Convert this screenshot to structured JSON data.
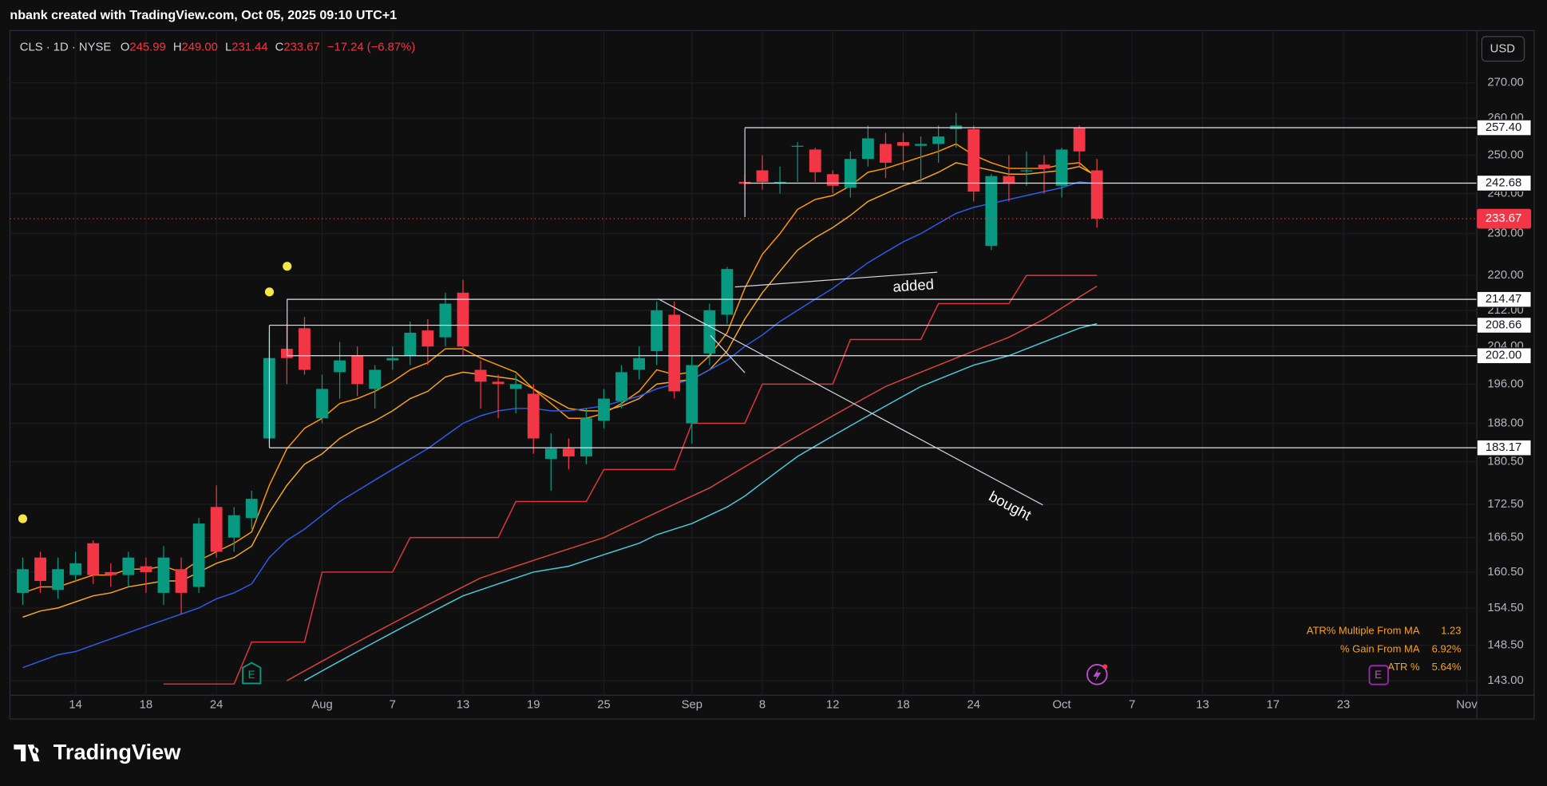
{
  "header": "nbank created with TradingView.com, Oct 05, 2025 09:10 UTC+1",
  "brand": "TradingView",
  "chart_data": {
    "type": "candlestick",
    "log": true,
    "grid": true,
    "legend": {
      "symbol": "CLS · 1D · NYSE",
      "o_label": "O",
      "o": "245.99",
      "h_label": "H",
      "h": "249.00",
      "l_label": "L",
      "l": "231.44",
      "c_label": "C",
      "c": "233.67",
      "change": "−17.24 (−6.87%)"
    },
    "currency": "USD",
    "up_color": "#089981",
    "down_color": "#f23645",
    "x": [
      "2025-07-09",
      "2025-07-10",
      "2025-07-11",
      "2025-07-14",
      "2025-07-15",
      "2025-07-16",
      "2025-07-17",
      "2025-07-18",
      "2025-07-21",
      "2025-07-22",
      "2025-07-23",
      "2025-07-24",
      "2025-07-25",
      "2025-07-28",
      "2025-07-29",
      "2025-07-30",
      "2025-07-31",
      "2025-08-01",
      "2025-08-04",
      "2025-08-05",
      "2025-08-06",
      "2025-08-07",
      "2025-08-08",
      "2025-08-11",
      "2025-08-12",
      "2025-08-13",
      "2025-08-14",
      "2025-08-15",
      "2025-08-18",
      "2025-08-19",
      "2025-08-20",
      "2025-08-21",
      "2025-08-22",
      "2025-08-25",
      "2025-08-26",
      "2025-08-27",
      "2025-08-28",
      "2025-08-29",
      "2025-09-02",
      "2025-09-03",
      "2025-09-04",
      "2025-09-05",
      "2025-09-08",
      "2025-09-09",
      "2025-09-10",
      "2025-09-11",
      "2025-09-12",
      "2025-09-15",
      "2025-09-16",
      "2025-09-17",
      "2025-09-18",
      "2025-09-19",
      "2025-09-22",
      "2025-09-23",
      "2025-09-24",
      "2025-09-25",
      "2025-09-26",
      "2025-09-29",
      "2025-09-30",
      "2025-10-01",
      "2025-10-02",
      "2025-10-03"
    ],
    "open": [
      157,
      163,
      157.5,
      160,
      165.5,
      160.5,
      160,
      161.5,
      157,
      161,
      158,
      172,
      166.5,
      170,
      185,
      203.5,
      208,
      189,
      198.5,
      202,
      195,
      201,
      202,
      207.5,
      206,
      216,
      199,
      196.5,
      195,
      194,
      181,
      183,
      181.5,
      188.5,
      192.5,
      199,
      203,
      211,
      188,
      202.5,
      211,
      243,
      246,
      243,
      252.5,
      251.5,
      245,
      241.5,
      249,
      253,
      253.5,
      252.5,
      253,
      257,
      257,
      227,
      244.5,
      246,
      247.5,
      242,
      257.5,
      245.99
    ],
    "high": [
      163,
      164,
      163,
      164,
      166,
      162,
      164,
      163,
      165,
      163,
      170,
      176,
      172,
      175,
      207,
      209,
      210.5,
      198,
      205,
      204,
      200,
      204,
      209.5,
      210,
      216,
      219,
      201,
      198,
      198,
      196,
      186,
      185,
      191,
      195,
      200,
      204,
      214,
      214,
      202,
      213.5,
      222,
      245,
      250,
      247,
      253.5,
      252,
      246,
      251,
      258,
      256,
      256,
      255,
      258,
      261.5,
      258,
      245,
      250,
      251,
      250,
      252,
      258,
      249
    ],
    "low": [
      155,
      157,
      156,
      159,
      158.5,
      158,
      158,
      157,
      155,
      153.5,
      157,
      163,
      164,
      168,
      184,
      196,
      198,
      188,
      193,
      193.5,
      191,
      199,
      200,
      200,
      204,
      202,
      191,
      189,
      190,
      182,
      175,
      179,
      180,
      187,
      191,
      197,
      200,
      193,
      184,
      200,
      209,
      241,
      241,
      240,
      243,
      243,
      240,
      239,
      247,
      244,
      246,
      243,
      248,
      252,
      238,
      226,
      238,
      242,
      240,
      239,
      247,
      231.44
    ],
    "close": [
      161,
      159,
      161,
      162,
      160,
      160,
      163,
      160.5,
      163,
      157,
      169,
      164,
      170.5,
      173.5,
      201.5,
      201.5,
      199,
      195,
      201,
      196,
      199,
      201.5,
      207,
      204,
      213.5,
      204,
      196.5,
      196,
      196,
      185,
      183,
      181.5,
      189,
      193,
      198.5,
      201.5,
      212,
      194.5,
      200,
      212,
      221.5,
      242.5,
      243,
      243,
      252.5,
      245.5,
      242,
      249,
      254.5,
      248,
      252.5,
      253,
      255,
      258,
      240.5,
      244.5,
      242.5,
      246,
      246.5,
      251.5,
      251,
      233.67
    ],
    "series": [
      {
        "color": "#ff9800",
        "values": [
          157,
          158,
          158,
          159,
          160,
          160,
          161,
          161,
          161.5,
          160.5,
          162.5,
          164,
          165.5,
          167.5,
          176,
          183,
          187,
          189,
          192,
          193,
          194.5,
          196.5,
          199,
          200.5,
          203.5,
          203.5,
          201.5,
          200,
          198.5,
          195,
          192,
          189,
          189,
          190,
          192,
          194.5,
          199,
          198,
          198.5,
          202,
          207,
          217,
          225,
          230,
          236,
          238.5,
          239.5,
          242,
          245.5,
          246.5,
          248,
          249.5,
          251,
          253,
          250,
          248,
          246.5,
          246.5,
          246.5,
          247.5,
          248,
          244
        ]
      },
      {
        "color": "#f5a623",
        "values": [
          153,
          154,
          154.5,
          155.5,
          156.5,
          157,
          158,
          158.5,
          159,
          159,
          160.5,
          162,
          163,
          165,
          171,
          176,
          180,
          182,
          185,
          187,
          188.5,
          190.5,
          193,
          194.5,
          197.5,
          198.5,
          198,
          197.5,
          197,
          195,
          193,
          191,
          190.5,
          190.5,
          191.5,
          193,
          196,
          196.5,
          197,
          199,
          203,
          210,
          216,
          221,
          226,
          229,
          231.5,
          234.5,
          238,
          240,
          242,
          243.5,
          245.5,
          248,
          247,
          246,
          245,
          245,
          245.5,
          246,
          247,
          244.5
        ]
      },
      {
        "color": "#2f5bea",
        "values": [
          145,
          146,
          147,
          147.5,
          148.5,
          149.5,
          150.5,
          151.5,
          152.5,
          153.5,
          154.5,
          156,
          157,
          158.5,
          163,
          166,
          168,
          170.5,
          173,
          175,
          177,
          179,
          181,
          183,
          185.5,
          188,
          189.5,
          190.5,
          191,
          191,
          190.5,
          190.5,
          191,
          191.5,
          192.5,
          193.5,
          195,
          196,
          197,
          199,
          201,
          204,
          206.5,
          209.5,
          212,
          214.5,
          217,
          220,
          223,
          225.5,
          228,
          230,
          232.5,
          235,
          236.5,
          237.5,
          238.5,
          239.5,
          240.5,
          241.5,
          243,
          242.5
        ]
      },
      {
        "color": "#d9443c",
        "values": [
          null,
          null,
          null,
          null,
          null,
          null,
          null,
          null,
          null,
          null,
          null,
          null,
          null,
          null,
          null,
          143,
          144.5,
          146,
          147.5,
          149,
          150.5,
          152,
          153.5,
          155,
          156.5,
          158,
          159.5,
          160.5,
          161.5,
          162.5,
          163.5,
          164.5,
          165.5,
          166.5,
          168,
          169.5,
          171,
          172.5,
          174,
          175.5,
          177.5,
          179.5,
          181.5,
          183.5,
          185.5,
          187.5,
          189.5,
          191.5,
          193.5,
          195.5,
          197,
          198.5,
          200,
          201.5,
          203,
          204.5,
          206,
          208,
          210,
          212.5,
          215,
          217.5
        ]
      },
      {
        "color": "#4dc9dc",
        "values": [
          null,
          null,
          null,
          null,
          null,
          null,
          null,
          null,
          null,
          null,
          null,
          null,
          null,
          null,
          null,
          null,
          143,
          144.5,
          146,
          147.5,
          149,
          150.5,
          152,
          153.5,
          155,
          156.5,
          157.5,
          158.5,
          159.5,
          160.5,
          161,
          161.5,
          162.5,
          163.5,
          164.5,
          165.5,
          167,
          168,
          169,
          170.5,
          172,
          174,
          176.5,
          179,
          181.5,
          183.5,
          185.5,
          187.5,
          189.5,
          191.5,
          193.5,
          195.5,
          197,
          198.5,
          200,
          201,
          202,
          203.5,
          205,
          206.5,
          208,
          209
        ]
      },
      {
        "color": "#e0353f",
        "values": [
          null,
          null,
          null,
          null,
          null,
          null,
          null,
          null,
          142.5,
          142.5,
          142.5,
          142.5,
          142.5,
          149,
          149,
          149,
          149,
          160.5,
          160.5,
          160.5,
          160.5,
          160.5,
          166.5,
          166.5,
          166.5,
          166.5,
          166.5,
          166.5,
          173,
          173,
          173,
          173,
          173,
          179,
          179,
          179,
          179,
          179,
          188,
          188,
          188,
          188,
          196,
          196,
          196,
          196,
          196,
          205.5,
          205.5,
          205.5,
          205.5,
          205.5,
          213.5,
          213.5,
          213.5,
          213.5,
          213.5,
          220,
          220,
          220,
          220,
          220
        ]
      }
    ],
    "ylim": [
      141.1,
      285.1
    ],
    "yticks": [
      {
        "value": 143,
        "label": "143.00"
      },
      {
        "value": 148.5,
        "label": "148.50"
      },
      {
        "value": 154.5,
        "label": "154.50"
      },
      {
        "value": 160.5,
        "label": "160.50"
      },
      {
        "value": 166.5,
        "label": "166.50"
      },
      {
        "value": 172.5,
        "label": "172.50"
      },
      {
        "value": 180.5,
        "label": "180.50"
      },
      {
        "value": 188,
        "label": "188.00"
      },
      {
        "value": 196,
        "label": "196.00"
      },
      {
        "value": 204,
        "label": "204.00"
      },
      {
        "value": 212,
        "label": "212.00"
      },
      {
        "value": 220,
        "label": "220.00"
      },
      {
        "value": 230,
        "label": "230.00"
      },
      {
        "value": 240,
        "label": "240.00"
      },
      {
        "value": 250,
        "label": "250.00"
      },
      {
        "value": 260,
        "label": "260.00"
      },
      {
        "value": 270,
        "label": "270.00"
      }
    ],
    "xticks": [
      {
        "value": "2025-07-14",
        "label": "14"
      },
      {
        "value": "2025-07-18",
        "label": "18"
      },
      {
        "value": "2025-07-24",
        "label": "24"
      },
      {
        "value": "2025-08-01",
        "label": "Aug"
      },
      {
        "value": "2025-08-07",
        "label": "7"
      },
      {
        "value": "2025-08-13",
        "label": "13"
      },
      {
        "value": "2025-08-19",
        "label": "19"
      },
      {
        "value": "2025-08-25",
        "label": "25"
      },
      {
        "value": "2025-09-02",
        "label": "Sep"
      },
      {
        "value": "2025-09-08",
        "label": "8"
      },
      {
        "value": "2025-09-12",
        "label": "12"
      },
      {
        "value": "2025-09-18",
        "label": "18"
      },
      {
        "value": "2025-09-24",
        "label": "24"
      },
      {
        "value": "2025-10-01",
        "label": "Oct"
      },
      {
        "value": "2025-10-07",
        "label": "7"
      },
      {
        "value": "2025-10-13",
        "label": "13"
      },
      {
        "value": "2025-10-17",
        "label": "17"
      },
      {
        "value": "2025-10-23",
        "label": "23"
      },
      {
        "value": "2025-11-03",
        "label": "Nov"
      }
    ],
    "levels": [
      {
        "value": 257.4,
        "label": "257.40",
        "start": "2025-09-05"
      },
      {
        "value": 242.68,
        "label": "242.68",
        "start": "2025-09-05"
      },
      {
        "value": 214.47,
        "label": "214.47",
        "start": "2025-07-30"
      },
      {
        "value": 208.66,
        "label": "208.66",
        "start": "2025-07-29"
      },
      {
        "value": 202,
        "label": "202.00",
        "start": "2025-07-30"
      },
      {
        "value": 183.17,
        "label": "183.17",
        "start": "2025-07-29"
      }
    ],
    "last_price": {
      "value": 233.67,
      "label": "233.67"
    },
    "annotations": [
      "added",
      "bought"
    ],
    "event_marker": "E",
    "indicators": [
      {
        "name": "ATR% Multiple From MA",
        "value": "1.23"
      },
      {
        "name": "% Gain From MA",
        "value": "6.92%"
      },
      {
        "name": "ATR %",
        "value": "5.64%"
      }
    ]
  }
}
